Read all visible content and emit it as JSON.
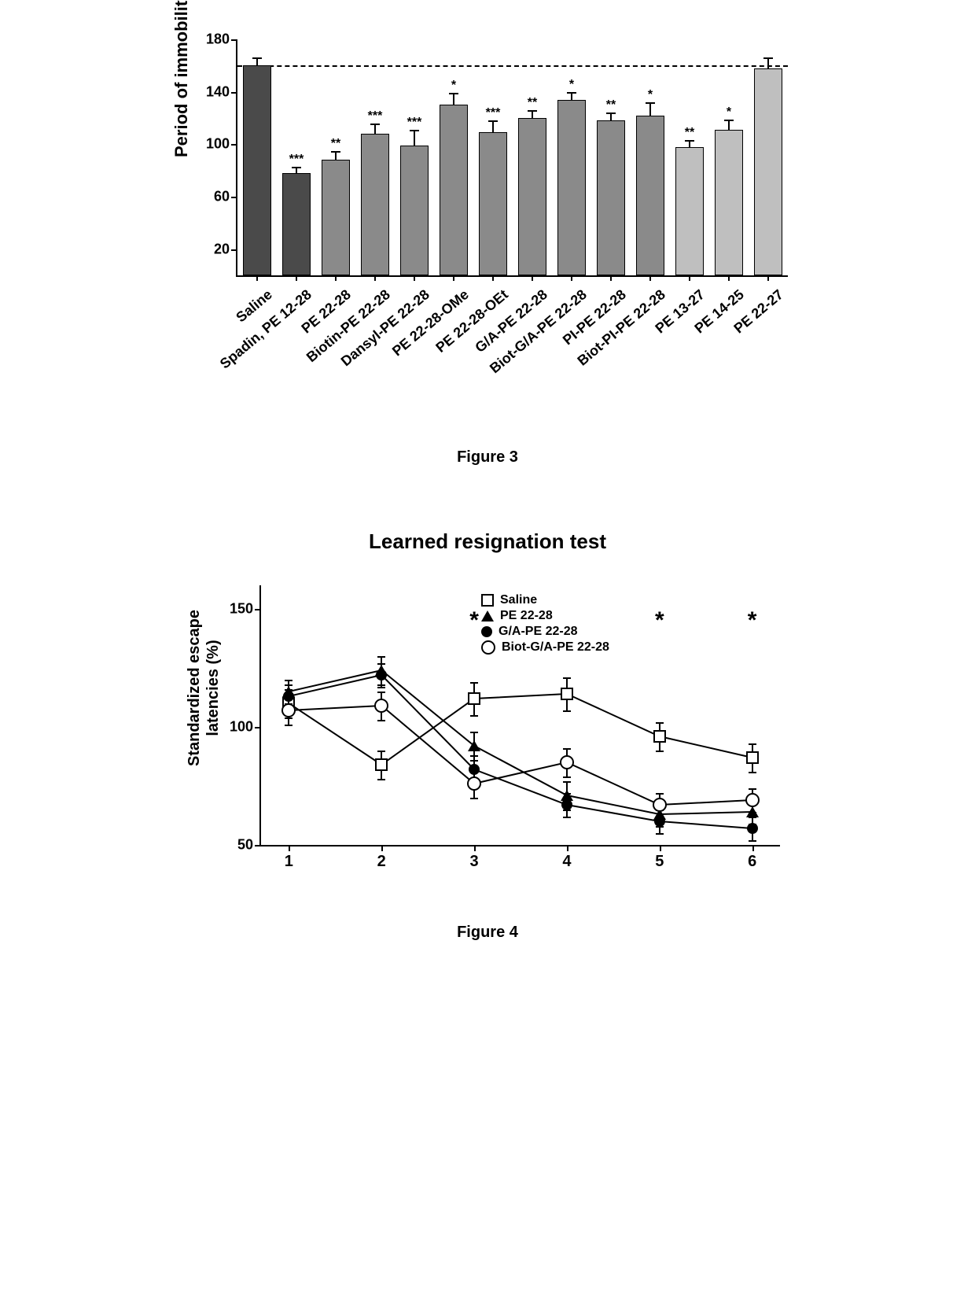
{
  "figure3": {
    "type": "bar",
    "caption": "Figure 3",
    "ylabel": "Period of immobility (s)",
    "ylim": [
      0,
      180
    ],
    "yticks": [
      20,
      60,
      100,
      140,
      180
    ],
    "reference_line": 160,
    "bar_width": 0.72,
    "label_fontsize": 18,
    "ylabel_fontsize": 22,
    "background_color": "#ffffff",
    "categories": [
      "Saline",
      "Spadin, PE 12-28",
      "PE 22-28",
      "Biotin-PE 22-28",
      "Dansyl-PE 22-28",
      "PE 22-28-OMe",
      "PE 22-28-OEt",
      "G/A-PE 22-28",
      "Biot-G/A-PE 22-28",
      "PI-PE 22-28",
      "Biot-PI-PE 22-28",
      "PE 13-27",
      "PE 14-25",
      "PE 22-27"
    ],
    "values": [
      160,
      78,
      88,
      108,
      99,
      130,
      109,
      120,
      134,
      118,
      122,
      98,
      111,
      158
    ],
    "errors": [
      6,
      5,
      7,
      8,
      12,
      9,
      9,
      6,
      6,
      6,
      10,
      5,
      8,
      8
    ],
    "significance": [
      "",
      "***",
      "**",
      "***",
      "***",
      "*",
      "***",
      "**",
      "*",
      "**",
      "*",
      "**",
      "*",
      ""
    ],
    "bar_colors": [
      "#4a4a4a",
      "#4a4a4a",
      "#8a8a8a",
      "#8a8a8a",
      "#8a8a8a",
      "#8a8a8a",
      "#8a8a8a",
      "#8a8a8a",
      "#8a8a8a",
      "#8a8a8a",
      "#8a8a8a",
      "#bfbfbf",
      "#bfbfbf",
      "#bfbfbf"
    ]
  },
  "figure4": {
    "type": "line",
    "caption": "Figure 4",
    "title": "Learned resignation test",
    "ylabel_line1": "Standardized escape",
    "ylabel_line2": "latencies (%)",
    "ylim": [
      50,
      160
    ],
    "yticks": [
      50,
      100,
      150
    ],
    "xvalues": [
      1,
      2,
      3,
      4,
      5,
      6
    ],
    "xlim": [
      0.7,
      6.3
    ],
    "star_positions": [
      3,
      5,
      6
    ],
    "star_y": 145,
    "series": [
      {
        "name": "Saline",
        "marker": "square-open",
        "color": "#000000",
        "y": [
          110,
          84,
          112,
          114,
          96,
          87
        ],
        "err": [
          6,
          6,
          7,
          7,
          6,
          6
        ]
      },
      {
        "name": "PE 22-28",
        "marker": "triangle-fill",
        "color": "#000000",
        "y": [
          115,
          124,
          92,
          71,
          63,
          64
        ],
        "err": [
          5,
          6,
          6,
          6,
          5,
          5
        ]
      },
      {
        "name": "G/A-PE 22-28",
        "marker": "circle-fill",
        "color": "#000000",
        "y": [
          113,
          122,
          82,
          67,
          60,
          57
        ],
        "err": [
          5,
          5,
          6,
          5,
          5,
          5
        ]
      },
      {
        "name": "Biot-G/A-PE 22-28",
        "marker": "circle-open",
        "color": "#000000",
        "y": [
          107,
          109,
          76,
          85,
          67,
          69
        ],
        "err": [
          6,
          6,
          6,
          6,
          5,
          5
        ]
      }
    ],
    "legend_labels": [
      "Saline",
      "PE 22-28",
      "G/A-PE 22-28",
      "Biot-G/A-PE 22-28"
    ]
  }
}
